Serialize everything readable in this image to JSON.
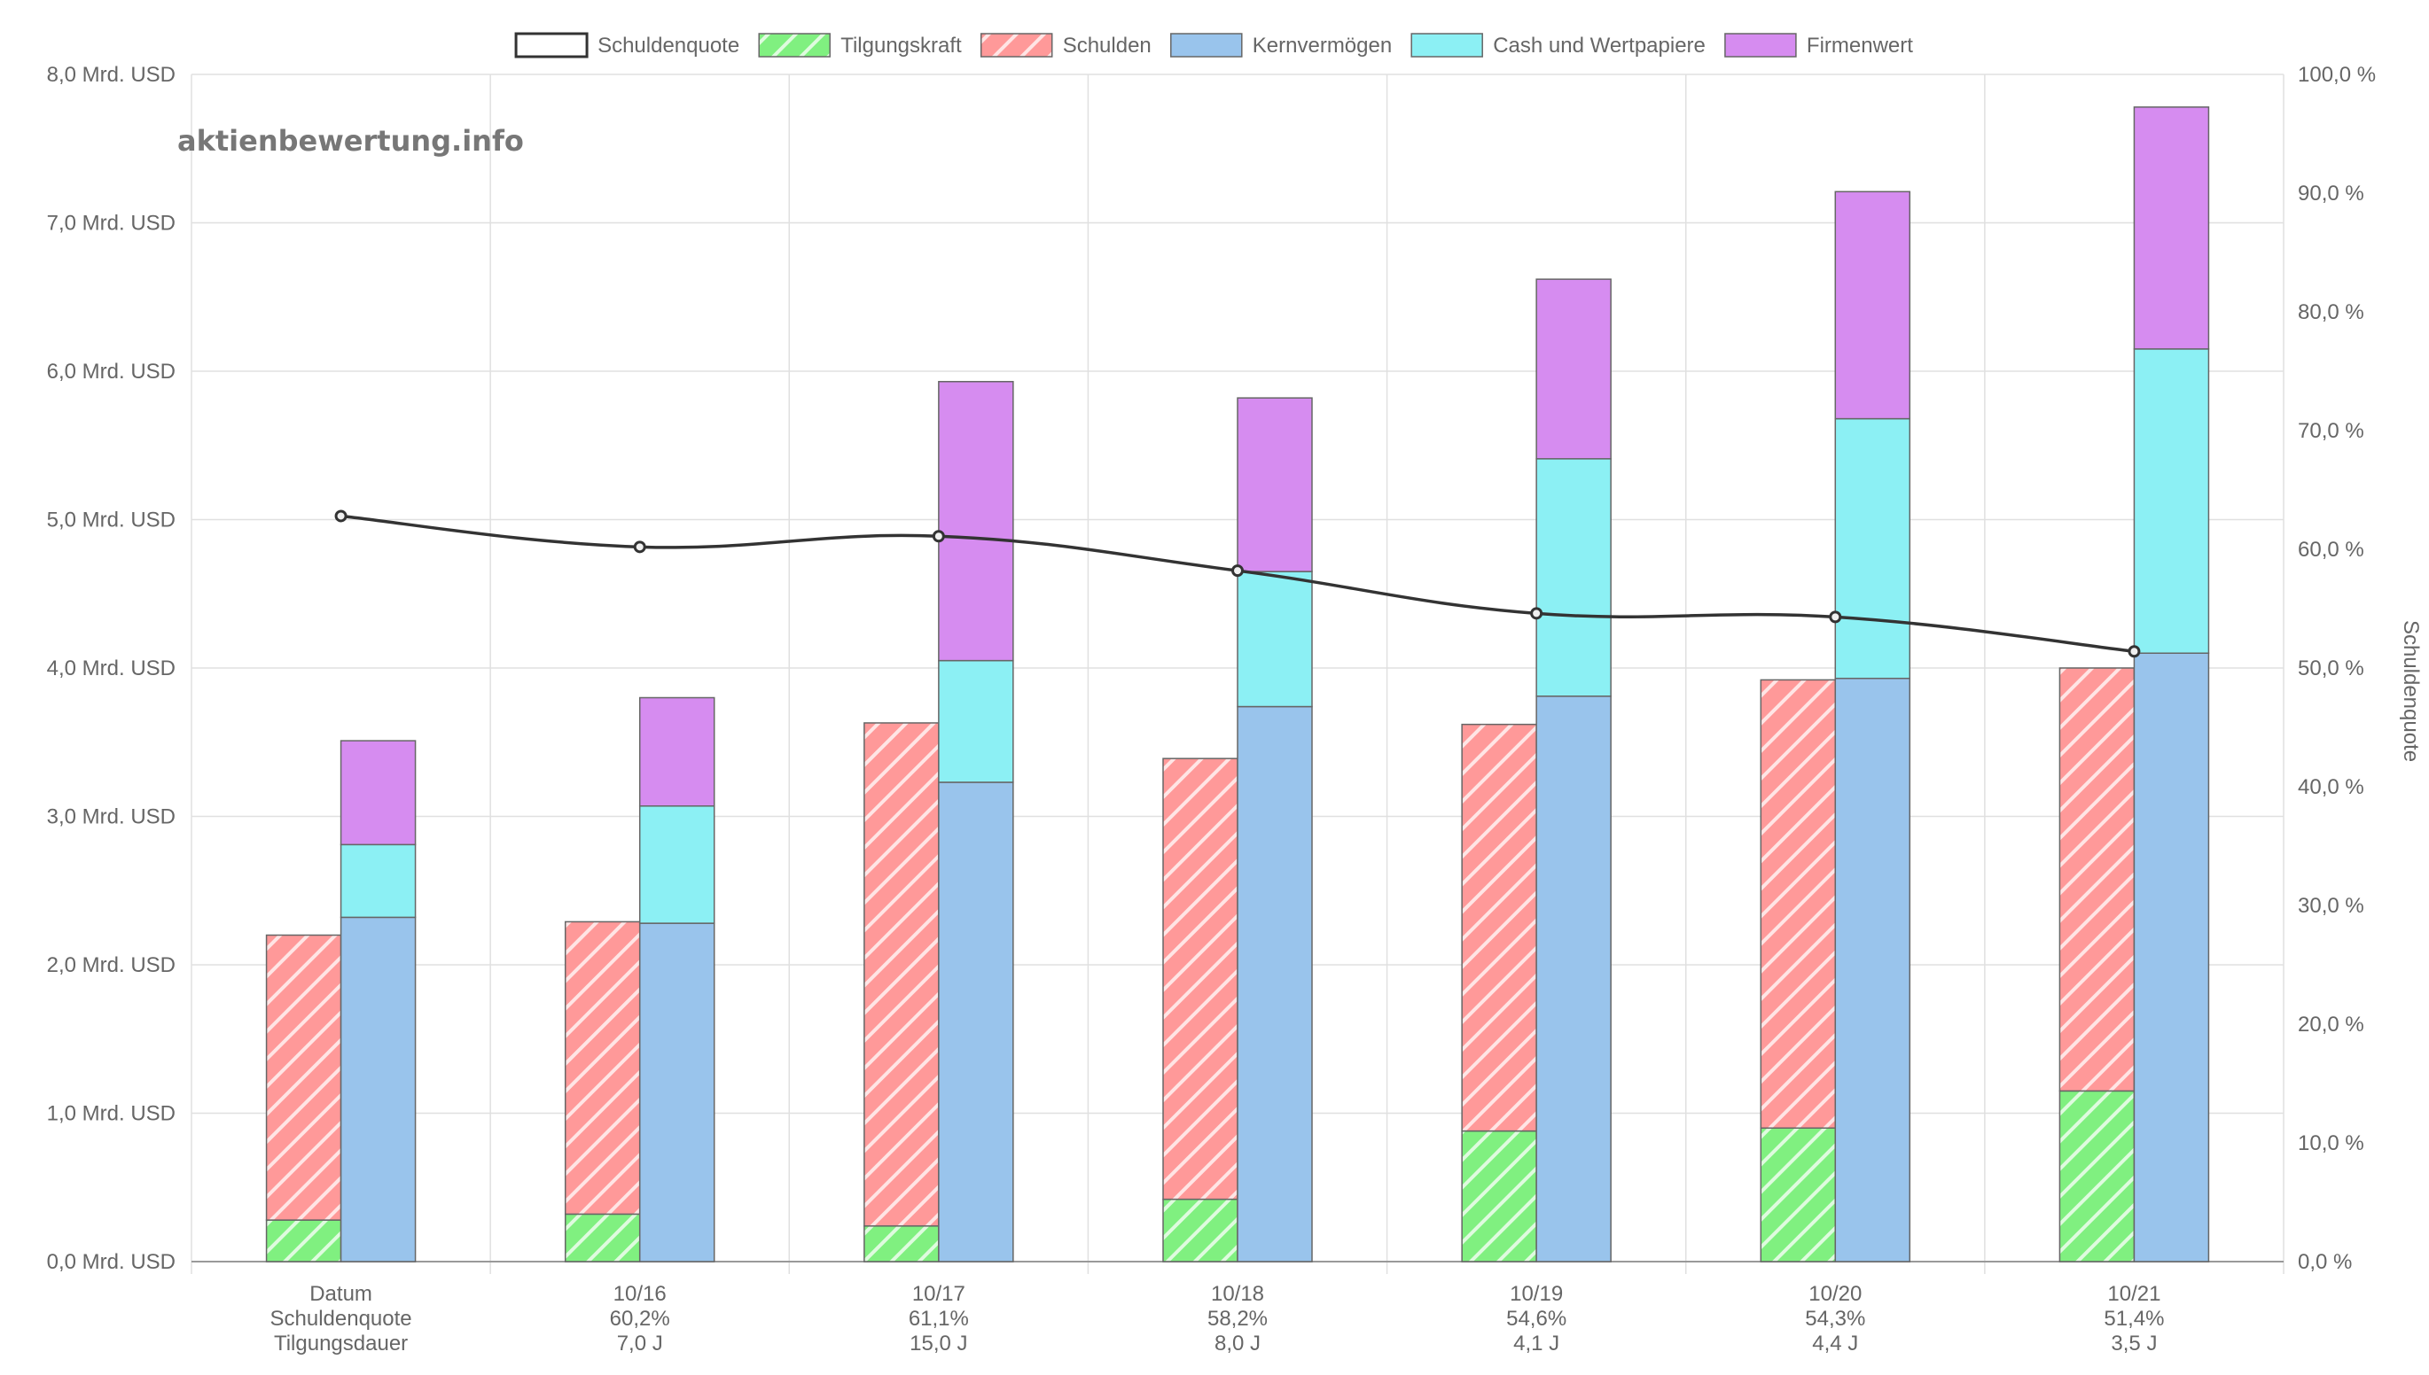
{
  "watermark": "aktienbewertung.info",
  "colors": {
    "schuldenquote_line": "#333333",
    "tilgungskraft": "#80f080",
    "schulden": "#ff9999",
    "kernvermoegen": "#99c4ec",
    "cash": "#8cf0f4",
    "firmenwert": "#d68cf0",
    "bar_border": "#666666",
    "grid": "#e0e0e0",
    "tick_text": "#666666"
  },
  "chart_data": {
    "type": "bar",
    "categories": [
      "Datum",
      "10/16",
      "10/17",
      "10/18",
      "10/19",
      "10/20",
      "10/21"
    ],
    "x_label_rows": [
      [
        "Datum",
        "Schuldenquote",
        "Tilgungsdauer"
      ],
      [
        "10/16",
        "60,2%",
        "7,0 J"
      ],
      [
        "10/17",
        "61,1%",
        "15,0 J"
      ],
      [
        "10/18",
        "58,2%",
        "8,0 J"
      ],
      [
        "10/19",
        "54,6%",
        "4,1 J"
      ],
      [
        "10/20",
        "54,3%",
        "4,4 J"
      ],
      [
        "10/21",
        "51,4%",
        "3,5 J"
      ]
    ],
    "legend": {
      "position": "top-center",
      "items": [
        {
          "label": "Schuldenquote",
          "color_key": "schuldenquote_line",
          "hatched": false,
          "outline_only": true
        },
        {
          "label": "Tilgungskraft",
          "color_key": "tilgungskraft",
          "hatched": true
        },
        {
          "label": "Schulden",
          "color_key": "schulden",
          "hatched": true
        },
        {
          "label": "Kernvermögen",
          "color_key": "kernvermoegen",
          "hatched": false
        },
        {
          "label": "Cash und Wertpapiere",
          "color_key": "cash",
          "hatched": false
        },
        {
          "label": "Firmenwert",
          "color_key": "firmenwert",
          "hatched": false
        }
      ]
    },
    "left_axis": {
      "unit": "Mrd. USD",
      "ylim": [
        0,
        8
      ],
      "ticks": [
        "0,0 Mrd. USD",
        "1,0 Mrd. USD",
        "2,0 Mrd. USD",
        "3,0 Mrd. USD",
        "4,0 Mrd. USD",
        "5,0 Mrd. USD",
        "6,0 Mrd. USD",
        "7,0 Mrd. USD",
        "8,0 Mrd. USD"
      ]
    },
    "right_axis": {
      "label": "Schuldenquote",
      "ylim": [
        0,
        100
      ],
      "ticks": [
        "0,0 %",
        "10,0 %",
        "20,0 %",
        "30,0 %",
        "40,0 %",
        "50,0 %",
        "60,0 %",
        "70,0 %",
        "80,0 %",
        "90,0 %",
        "100,0 %"
      ]
    },
    "grid": true,
    "debt_stack": [
      {
        "name": "Tilgungskraft",
        "color_key": "tilgungskraft",
        "hatched": true,
        "values": [
          0.28,
          0.32,
          0.24,
          0.42,
          0.88,
          0.9,
          1.15
        ]
      },
      {
        "name": "Schulden",
        "color_key": "schulden",
        "hatched": true,
        "values": [
          1.92,
          1.97,
          3.39,
          2.97,
          2.74,
          3.02,
          2.85
        ]
      }
    ],
    "asset_stack": [
      {
        "name": "Kernvermögen",
        "color_key": "kernvermoegen",
        "hatched": false,
        "values": [
          2.32,
          2.28,
          3.23,
          3.74,
          3.81,
          3.93,
          4.1
        ]
      },
      {
        "name": "Cash und Wertpapiere",
        "color_key": "cash",
        "hatched": false,
        "values": [
          0.49,
          0.79,
          0.82,
          0.91,
          1.6,
          1.75,
          2.05
        ]
      },
      {
        "name": "Firmenwert",
        "color_key": "firmenwert",
        "hatched": false,
        "values": [
          0.7,
          0.73,
          1.88,
          1.17,
          1.21,
          1.53,
          1.63
        ]
      }
    ],
    "line_series": {
      "name": "Schuldenquote",
      "axis": "right",
      "values": [
        62.8,
        60.2,
        61.1,
        58.2,
        54.6,
        54.3,
        51.4
      ]
    }
  }
}
